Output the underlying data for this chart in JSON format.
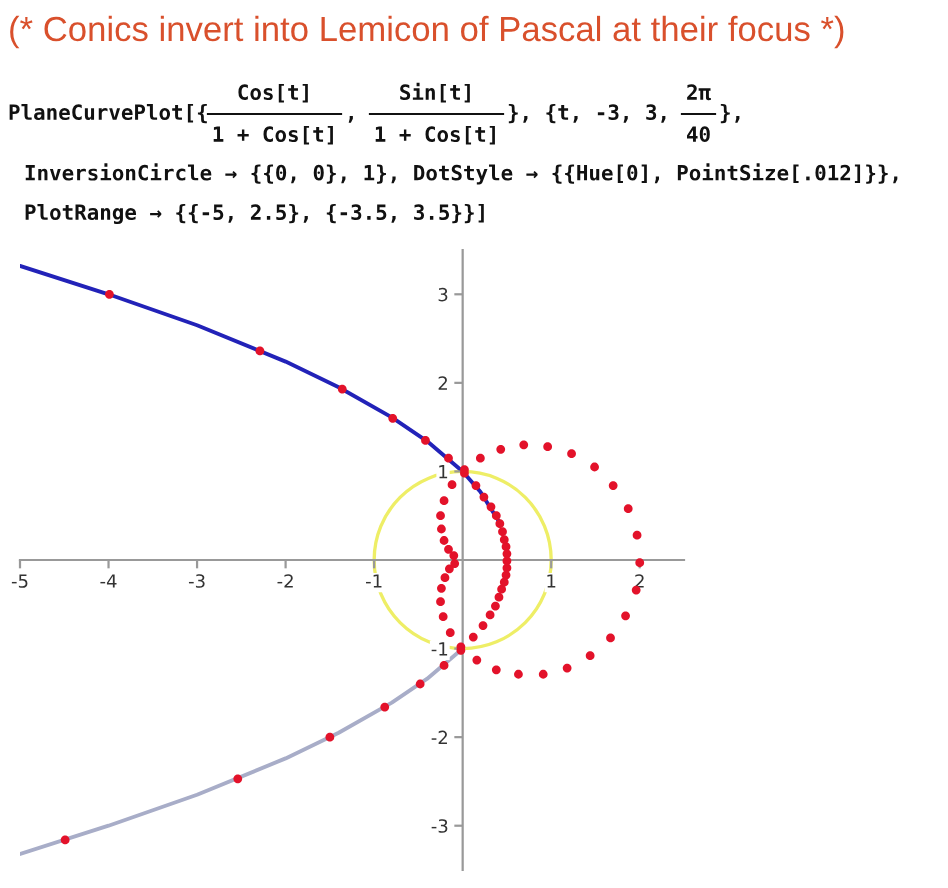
{
  "chart_data": {
    "type": "line",
    "title": "(* Conics invert into Lemicon of Pascal at their focus *)",
    "annotations": [
      "PlaneCurvePlot[{",
      "Cos[t]",
      "1 + Cos[t]",
      ", ",
      "Sin[t]",
      "1 + Cos[t]",
      "}, {t, -3, 3, ",
      "2π",
      "40",
      "},",
      "InversionCircle → {{0, 0}, 1}, DotStyle → {{Hue[0], PointSize[.012]}},",
      "PlotRange → {{-5, 2.5}, {-3.5, 3.5}}]"
    ],
    "xlim": [
      -5,
      2.5
    ],
    "ylim": [
      -3.5,
      3.5
    ],
    "xticks": [
      -5,
      -4,
      -3,
      -2,
      -1,
      1,
      2
    ],
    "yticks": [
      -3,
      -2,
      -1,
      1,
      2,
      3
    ],
    "grid": false,
    "series": [
      {
        "type": "line",
        "color": "#2222b8",
        "x": [
          -5,
          -4,
          -3,
          -2,
          -1.4,
          -0.8,
          -0.4,
          0,
          0.2,
          0.4
        ],
        "values": [
          3.32,
          3.0,
          2.65,
          2.24,
          1.95,
          1.61,
          1.34,
          1.0,
          0.77,
          0.45
        ]
      },
      {
        "type": "line",
        "color": "#a8adc8",
        "x": [
          -5,
          -4,
          -3,
          -2,
          -1.4,
          -0.8,
          -0.4,
          0
        ],
        "values": [
          -3.32,
          -3.0,
          -2.65,
          -2.24,
          -1.95,
          -1.61,
          -1.34,
          -1.0
        ]
      },
      {
        "type": "scatter",
        "color": "#e3122a",
        "marker": "circle",
        "x": [
          -4.49,
          -2.54,
          -1.5,
          -0.88,
          -0.48,
          -0.21,
          -0.02,
          0.12,
          0.23,
          0.31,
          0.37,
          0.41,
          0.44,
          0.47,
          0.49,
          0.5,
          0.5,
          0.5,
          0.49,
          0.47,
          0.45,
          0.42,
          0.38,
          0.32,
          0.24,
          0.15,
          0.02,
          -0.16,
          -0.42,
          -0.79,
          -1.36,
          -2.29,
          -3.99,
          -0.09,
          -0.15,
          -0.2,
          -0.24,
          -0.25,
          -0.22,
          -0.14,
          -0.02,
          0.16,
          0.38,
          0.63,
          0.91,
          1.18,
          1.44,
          1.67,
          1.84,
          1.96,
          2.0,
          1.97,
          1.87,
          1.7,
          1.49,
          1.23,
          0.96,
          0.69,
          0.43,
          0.2,
          0.02,
          -0.12,
          -0.21,
          -0.25,
          -0.24,
          -0.21,
          -0.16,
          -0.1
        ],
        "values": [
          -3.16,
          -2.47,
          -2.0,
          -1.66,
          -1.4,
          -1.19,
          -1.02,
          -0.87,
          -0.74,
          -0.62,
          -0.52,
          -0.42,
          -0.33,
          -0.25,
          -0.17,
          -0.09,
          -0.01,
          0.07,
          0.15,
          0.23,
          0.32,
          0.41,
          0.5,
          0.6,
          0.71,
          0.84,
          0.98,
          1.15,
          1.35,
          1.6,
          1.93,
          2.36,
          3.0,
          -0.04,
          -0.1,
          -0.2,
          -0.32,
          -0.47,
          -0.64,
          -0.82,
          -0.98,
          -1.13,
          -1.24,
          -1.29,
          -1.29,
          -1.22,
          -1.08,
          -0.88,
          -0.63,
          -0.34,
          -0.03,
          0.28,
          0.58,
          0.84,
          1.05,
          1.2,
          1.28,
          1.3,
          1.25,
          1.15,
          1.02,
          0.85,
          0.67,
          0.5,
          0.35,
          0.22,
          0.12,
          0.05
        ]
      }
    ]
  }
}
